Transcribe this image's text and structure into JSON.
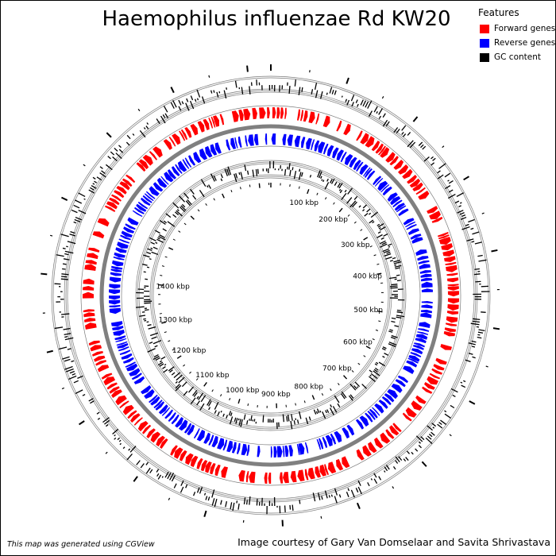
{
  "title": "Haemophilus influenzae Rd KW20",
  "legend": {
    "title": "Features",
    "items": [
      {
        "label": "Forward genes",
        "color": "#ff0000"
      },
      {
        "label": "Reverse genes",
        "color": "#0000ff"
      },
      {
        "label": "GC content",
        "color": "#000000"
      }
    ]
  },
  "map": {
    "genome_length_kbp": 1830,
    "tick_labels": [
      "100 kbp",
      "200 kbp",
      "300 kbp",
      "400 kbp",
      "500 kbp",
      "600 kbp",
      "700 kbp",
      "800 kbp",
      "900 kbp",
      "1000 kbp",
      "1100 kbp",
      "1200 kbp",
      "1300 kbp",
      "1400 kbp"
    ],
    "tick_positions_kbp": [
      100,
      200,
      300,
      400,
      500,
      600,
      700,
      800,
      900,
      1000,
      1100,
      1200,
      1300,
      1400
    ],
    "colors": {
      "forward": "#ff0000",
      "reverse": "#0000ff",
      "gc": "#000000",
      "backbone": "#808080"
    }
  },
  "footer": {
    "left": "This map was generated using CGView",
    "right": "Image courtesy of Gary Van Domselaar and Savita Shrivastava"
  }
}
